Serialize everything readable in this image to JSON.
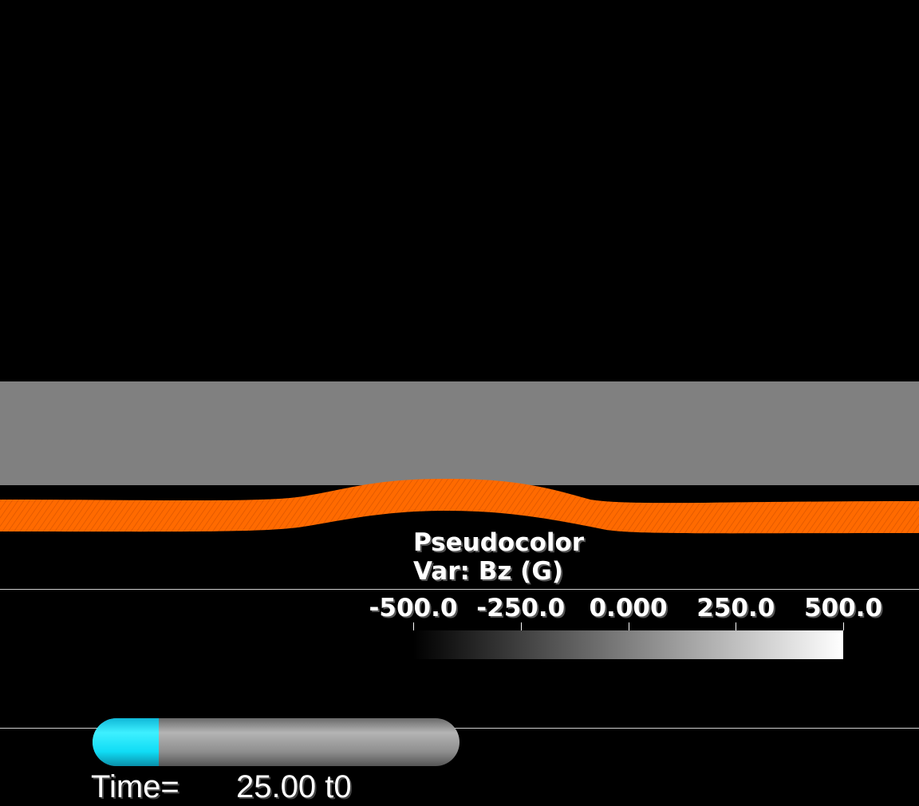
{
  "plot": {
    "title": "Pseudocolor",
    "variable": "Var: Bz (G)",
    "colorbar_ticks": [
      "-500.0",
      "-250.0",
      "0.000",
      "250.0",
      "500.0"
    ],
    "colorbar_range": [
      -500.0,
      500.0
    ],
    "colors": {
      "background": "#000000",
      "slab": "#808080",
      "tube": "#ff6a00",
      "colormap_low": "#000000",
      "colormap_high": "#ffffff"
    }
  },
  "time": {
    "label": "Time=",
    "value": "25.00 t0",
    "progress_fraction": 0.18,
    "colors": {
      "fill": "#18e4ff",
      "track": "#8e8e8e"
    }
  }
}
